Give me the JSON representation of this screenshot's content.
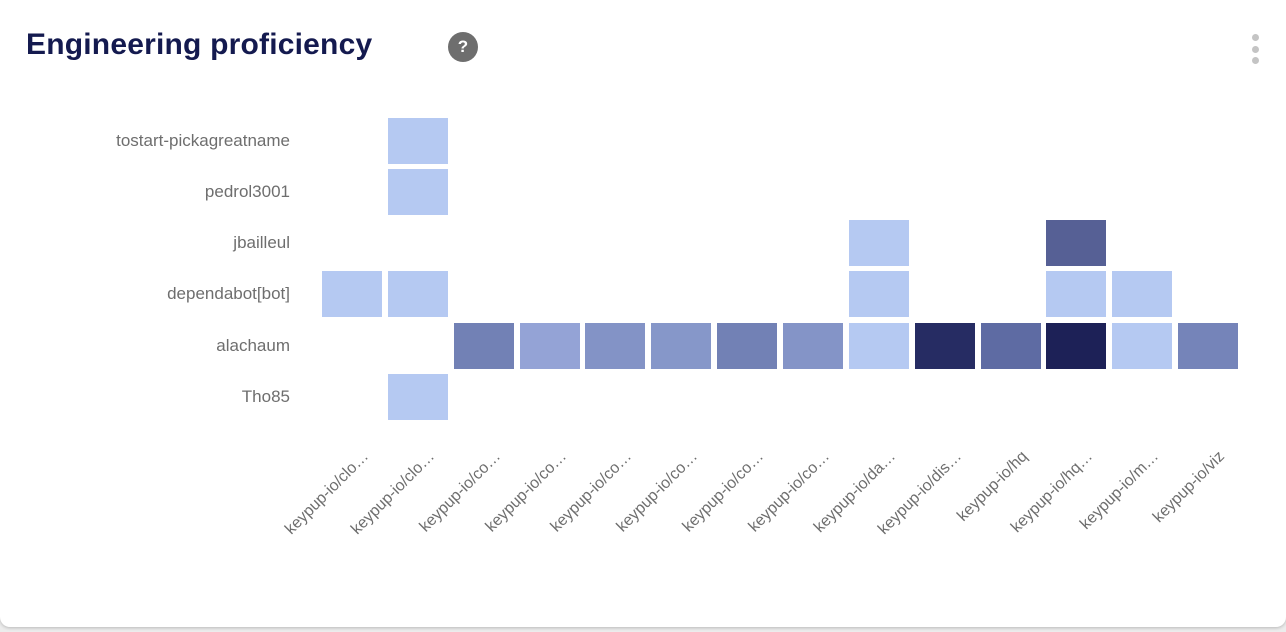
{
  "header": {
    "title": "Engineering proficiency",
    "help_icon_glyph": "?"
  },
  "chart_data": {
    "type": "heatmap",
    "title": "Engineering proficiency",
    "rows": [
      "tostart-pickagreatname",
      "pedrol3001",
      "jbailleul",
      "dependabot[bot]",
      "alachaum",
      "Tho85"
    ],
    "columns": [
      "keypup-io/clo…",
      "keypup-io/clo…",
      "keypup-io/co…",
      "keypup-io/co…",
      "keypup-io/co…",
      "keypup-io/co…",
      "keypup-io/co…",
      "keypup-io/co…",
      "keypup-io/da…",
      "keypup-io/dis…",
      "keypup-io/hq",
      "keypup-io/hq…",
      "keypup-io/m…",
      "keypup-io/viz"
    ],
    "cells": [
      {
        "row": 0,
        "col": 1,
        "color": "#b5c9f2"
      },
      {
        "row": 1,
        "col": 1,
        "color": "#b5c9f2"
      },
      {
        "row": 2,
        "col": 8,
        "color": "#b5c9f2"
      },
      {
        "row": 2,
        "col": 11,
        "color": "#566095"
      },
      {
        "row": 3,
        "col": 0,
        "color": "#b5c9f2"
      },
      {
        "row": 3,
        "col": 1,
        "color": "#b5c9f2"
      },
      {
        "row": 3,
        "col": 8,
        "color": "#b5c9f2"
      },
      {
        "row": 3,
        "col": 11,
        "color": "#b5c9f2"
      },
      {
        "row": 3,
        "col": 12,
        "color": "#b5c9f2"
      },
      {
        "row": 4,
        "col": 2,
        "color": "#7281b5"
      },
      {
        "row": 4,
        "col": 3,
        "color": "#94a3d6"
      },
      {
        "row": 4,
        "col": 4,
        "color": "#8393c6"
      },
      {
        "row": 4,
        "col": 5,
        "color": "#8697c9"
      },
      {
        "row": 4,
        "col": 6,
        "color": "#7281b5"
      },
      {
        "row": 4,
        "col": 7,
        "color": "#8494c7"
      },
      {
        "row": 4,
        "col": 8,
        "color": "#b5c9f2"
      },
      {
        "row": 4,
        "col": 9,
        "color": "#262c63"
      },
      {
        "row": 4,
        "col": 10,
        "color": "#5e6ba3"
      },
      {
        "row": 4,
        "col": 11,
        "color": "#1d2157"
      },
      {
        "row": 4,
        "col": 12,
        "color": "#b5c9f2"
      },
      {
        "row": 4,
        "col": 13,
        "color": "#7584b9"
      },
      {
        "row": 5,
        "col": 1,
        "color": "#b5c9f2"
      }
    ],
    "layout": {
      "legend": "none",
      "grid": "off",
      "x_label_rotation_deg": -45
    },
    "colors": {
      "background": "#ffffff",
      "label_text": "#6e6e6e",
      "title_text": "#141a4f"
    }
  }
}
